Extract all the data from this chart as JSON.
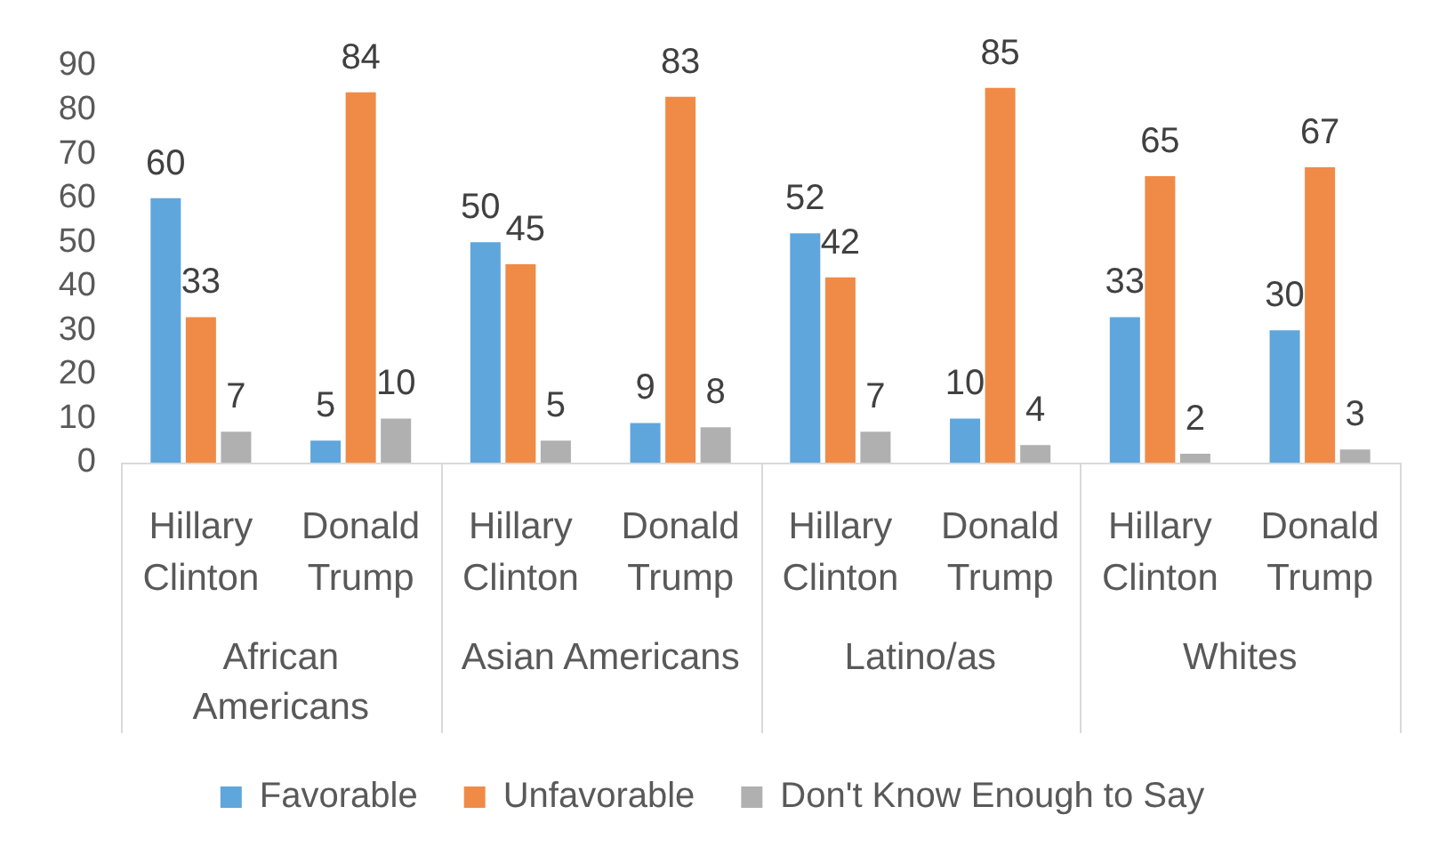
{
  "chart_data": {
    "type": "bar",
    "categories": [
      "Hillary Clinton",
      "Donald Trump",
      "Hillary Clinton",
      "Donald Trump",
      "Hillary Clinton",
      "Donald Trump",
      "Hillary Clinton",
      "Donald Trump"
    ],
    "series": [
      {
        "name": "Favorable",
        "color": "#5fa6dc",
        "values": [
          60,
          5,
          50,
          9,
          52,
          10,
          33,
          30
        ]
      },
      {
        "name": "Unfavorable",
        "color": "#f08b47",
        "values": [
          33,
          84,
          45,
          83,
          42,
          85,
          65,
          67
        ]
      },
      {
        "name": "Don't Know Enough to Say",
        "color": "#b0b0b0",
        "values": [
          7,
          10,
          5,
          8,
          7,
          4,
          2,
          3
        ]
      }
    ],
    "ylim": [
      0,
      90
    ],
    "yticks": [
      0,
      10,
      20,
      30,
      40,
      50,
      60,
      70,
      80,
      90
    ],
    "data_labels": true,
    "legend": "bottom",
    "annotations": [
      "African Americans",
      "Asian Americans",
      "Latino/as",
      "Whites"
    ]
  }
}
